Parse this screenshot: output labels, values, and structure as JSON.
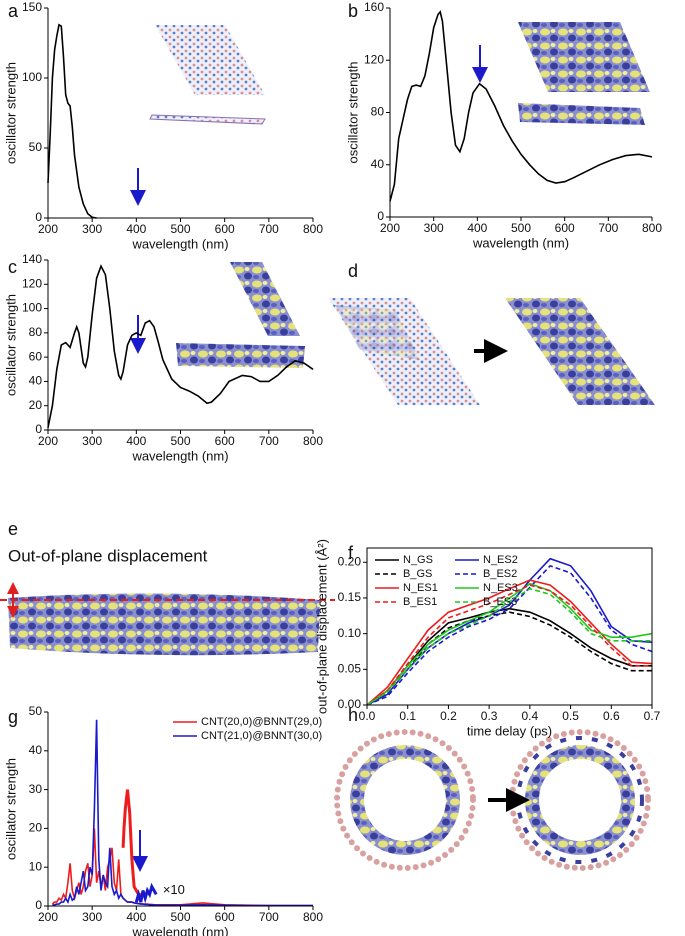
{
  "chart_data": [
    {
      "type": "line",
      "panel": "a",
      "xlabel": "wavelength (nm)",
      "ylabel": "oscillator strength",
      "x": [
        200,
        205,
        210,
        215,
        220,
        225,
        230,
        235,
        240,
        245,
        250,
        255,
        260,
        270,
        280,
        290,
        300,
        310
      ],
      "xlim": [
        200,
        800
      ],
      "xticks": [
        200,
        300,
        400,
        500,
        600,
        700,
        800
      ],
      "ylim": [
        0,
        150
      ],
      "yticks": [
        0,
        50,
        100,
        150
      ],
      "series": [
        {
          "color": "#000000",
          "values": [
            25,
            60,
            100,
            120,
            130,
            138,
            137,
            115,
            88,
            82,
            80,
            65,
            45,
            22,
            10,
            3,
            0.5,
            0
          ]
        }
      ]
    },
    {
      "type": "line",
      "panel": "b",
      "xlabel": "wavelength (nm)",
      "ylabel": "oscillator strength",
      "x": [
        200,
        210,
        220,
        230,
        240,
        250,
        260,
        270,
        280,
        290,
        300,
        310,
        315,
        320,
        330,
        340,
        350,
        360,
        370,
        380,
        390,
        405,
        420,
        440,
        460,
        480,
        500,
        520,
        540,
        560,
        580,
        600,
        620,
        650,
        680,
        710,
        740,
        770,
        800
      ],
      "xlim": [
        200,
        800
      ],
      "xticks": [
        200,
        300,
        400,
        500,
        600,
        700,
        800
      ],
      "ylim": [
        0,
        160
      ],
      "yticks": [
        0,
        40,
        80,
        120,
        160
      ],
      "series": [
        {
          "color": "#000000",
          "values": [
            12,
            25,
            60,
            75,
            90,
            100,
            101,
            100,
            108,
            125,
            145,
            155,
            157,
            150,
            115,
            80,
            55,
            50,
            60,
            80,
            95,
            102,
            98,
            85,
            70,
            58,
            48,
            40,
            33,
            28,
            26,
            27,
            30,
            35,
            40,
            44,
            47,
            48,
            46
          ]
        }
      ]
    },
    {
      "type": "line",
      "panel": "c",
      "xlabel": "wavelength (nm)",
      "ylabel": "oscillator strength",
      "x": [
        200,
        210,
        220,
        230,
        240,
        250,
        260,
        265,
        270,
        280,
        285,
        290,
        300,
        310,
        320,
        330,
        340,
        350,
        360,
        365,
        370,
        380,
        390,
        400,
        410,
        420,
        430,
        440,
        450,
        460,
        480,
        500,
        520,
        540,
        560,
        570,
        590,
        610,
        640,
        660,
        680,
        700,
        720,
        740,
        760,
        780,
        800
      ],
      "xlim": [
        200,
        800
      ],
      "xticks": [
        200,
        300,
        400,
        500,
        600,
        700,
        800
      ],
      "ylim": [
        0,
        140
      ],
      "yticks": [
        0,
        20,
        40,
        60,
        80,
        100,
        120,
        140
      ],
      "series": [
        {
          "color": "#000000",
          "values": [
            2,
            20,
            50,
            70,
            72,
            68,
            80,
            85,
            80,
            55,
            52,
            60,
            95,
            125,
            135,
            128,
            100,
            65,
            45,
            42,
            48,
            70,
            78,
            80,
            78,
            88,
            90,
            85,
            72,
            58,
            42,
            35,
            32,
            28,
            22,
            23,
            30,
            40,
            45,
            44,
            40,
            40,
            45,
            52,
            57,
            55,
            50
          ]
        }
      ]
    },
    {
      "type": "line",
      "panel": "f",
      "xlabel": "time delay (ps)",
      "ylabel": "out-of-plane displacement (Å²)",
      "x": [
        0,
        0.05,
        0.1,
        0.15,
        0.2,
        0.25,
        0.3,
        0.35,
        0.4,
        0.45,
        0.5,
        0.55,
        0.6,
        0.65,
        0.7
      ],
      "xlim": [
        0,
        0.7
      ],
      "xticks": [
        {
          "value": 0,
          "label": "0.0"
        },
        {
          "value": 0.1,
          "label": "0.1"
        },
        {
          "value": 0.2,
          "label": "0.2"
        },
        {
          "value": 0.3,
          "label": "0.3"
        },
        {
          "value": 0.4,
          "label": "0.4"
        },
        {
          "value": 0.5,
          "label": "0.5"
        },
        {
          "value": 0.6,
          "label": "0.6"
        },
        {
          "value": 0.7,
          "label": "0.7"
        }
      ],
      "ylim": [
        0,
        0.22
      ],
      "yticks": [
        {
          "value": 0,
          "label": "0.00"
        },
        {
          "value": 0.05,
          "label": "0.05"
        },
        {
          "value": 0.1,
          "label": "0.10"
        },
        {
          "value": 0.15,
          "label": "0.15"
        },
        {
          "value": 0.2,
          "label": "0.20"
        }
      ],
      "legend": "upper left",
      "frame": true,
      "series": [
        {
          "name": "N_GS",
          "color": "#000000",
          "dash": false,
          "values": [
            0,
            0.02,
            0.055,
            0.09,
            0.115,
            0.122,
            0.13,
            0.135,
            0.13,
            0.118,
            0.1,
            0.08,
            0.065,
            0.055,
            0.055
          ]
        },
        {
          "name": "N_ES2",
          "color": "#1a1acc",
          "dash": false,
          "values": [
            0,
            0.015,
            0.05,
            0.08,
            0.1,
            0.115,
            0.125,
            0.14,
            0.175,
            0.205,
            0.195,
            0.16,
            0.11,
            0.09,
            0.088
          ]
        },
        {
          "name": "B_GS",
          "color": "#000000",
          "dash": true,
          "values": [
            0,
            0.018,
            0.05,
            0.085,
            0.108,
            0.118,
            0.125,
            0.13,
            0.124,
            0.112,
            0.095,
            0.075,
            0.058,
            0.048,
            0.048
          ]
        },
        {
          "name": "B_ES2",
          "color": "#1a1acc",
          "dash": true,
          "values": [
            0,
            0.012,
            0.045,
            0.075,
            0.095,
            0.11,
            0.12,
            0.135,
            0.165,
            0.195,
            0.185,
            0.15,
            0.105,
            0.085,
            0.075
          ]
        },
        {
          "name": "N_ES1",
          "color": "#ee1c1c",
          "dash": false,
          "values": [
            0,
            0.025,
            0.065,
            0.105,
            0.13,
            0.14,
            0.15,
            0.163,
            0.175,
            0.168,
            0.145,
            0.115,
            0.085,
            0.06,
            0.058
          ]
        },
        {
          "name": "N_ES3",
          "color": "#1ec81e",
          "dash": false,
          "values": [
            0,
            0.02,
            0.055,
            0.085,
            0.105,
            0.118,
            0.13,
            0.15,
            0.17,
            0.16,
            0.135,
            0.105,
            0.095,
            0.095,
            0.1
          ]
        },
        {
          "name": "B_ES1",
          "color": "#ee1c1c",
          "dash": true,
          "values": [
            0,
            0.02,
            0.058,
            0.095,
            0.122,
            0.132,
            0.142,
            0.155,
            0.168,
            0.16,
            0.14,
            0.11,
            0.08,
            0.055,
            0.055
          ]
        },
        {
          "name": "B_ES3",
          "color": "#1ec81e",
          "dash": true,
          "values": [
            0,
            0.018,
            0.05,
            0.08,
            0.1,
            0.112,
            0.125,
            0.145,
            0.163,
            0.155,
            0.13,
            0.1,
            0.09,
            0.09,
            0.09
          ]
        }
      ]
    },
    {
      "type": "line",
      "panel": "g",
      "xlabel": "wavelength (nm)",
      "ylabel": "oscillator strength",
      "annotation": "×10",
      "x": [
        210,
        215,
        220,
        225,
        230,
        235,
        240,
        245,
        250,
        255,
        260,
        265,
        270,
        275,
        280,
        285,
        290,
        295,
        300,
        305,
        310,
        315,
        320,
        325,
        330,
        335,
        340,
        345,
        350,
        355,
        360,
        365,
        370,
        375,
        380,
        385,
        390,
        395,
        400,
        405,
        410,
        415,
        420,
        425,
        430,
        435,
        440,
        445,
        450,
        500,
        550,
        600,
        650,
        700,
        750,
        800
      ],
      "xlim": [
        200,
        800
      ],
      "xticks": [
        200,
        300,
        400,
        500,
        600,
        700,
        800
      ],
      "ylim": [
        0,
        50
      ],
      "yticks": [
        0,
        10,
        20,
        30,
        40,
        50
      ],
      "legend": "upper right",
      "series": [
        {
          "name": "CNT(20,0)@BNNT(29,0)",
          "color": "#ee1c1c",
          "values": [
            0.5,
            1,
            1,
            2,
            1.5,
            3,
            2,
            6,
            11,
            4,
            2,
            4,
            6,
            3,
            5,
            9,
            11,
            5,
            8,
            20,
            6,
            9,
            5,
            8,
            4,
            10,
            12,
            15,
            6,
            4,
            12,
            3,
            2,
            1.5,
            1,
            1,
            1,
            0.8,
            0.8,
            0.6,
            0.6,
            0.5,
            0.5,
            0.5,
            0.4,
            0.4,
            0.3,
            0.3,
            0.3,
            0.3,
            0.8,
            0.3,
            0.2,
            0.1,
            0.1,
            0.1
          ]
        },
        {
          "name": "CNT(21,0)@BNNT(30,0)",
          "color": "#1a1acc",
          "values": [
            0.2,
            0.3,
            0.5,
            0.5,
            1,
            1,
            2,
            1,
            3,
            1.5,
            2,
            5,
            3,
            6,
            9,
            4,
            5,
            10,
            8,
            25,
            48,
            12,
            4,
            8,
            6,
            5,
            15,
            5,
            3,
            4,
            2,
            3,
            2,
            1.5,
            1,
            1,
            1,
            0.8,
            0.7,
            0.6,
            0.5,
            0.5,
            0.4,
            0.4,
            0.3,
            0.3,
            0.3,
            0.2,
            0.2,
            0.2,
            0.3,
            0.2,
            0.1,
            0.1,
            0.1,
            0.1
          ]
        },
        {
          "color": "#ee1c1c",
          "width": 3,
          "x": [
            370,
            372,
            375,
            380,
            385,
            390,
            395,
            400,
            405,
            410
          ],
          "values": [
            15,
            20,
            25,
            30,
            24,
            12,
            5,
            4,
            3,
            3
          ]
        },
        {
          "color": "#1a1acc",
          "width": 3,
          "x": [
            400,
            405,
            410,
            415,
            420,
            425,
            430,
            435,
            440,
            445
          ],
          "values": [
            1,
            3,
            1,
            4,
            2,
            4,
            3,
            5,
            4,
            3
          ]
        }
      ]
    }
  ],
  "images": [
    {
      "panel": "d"
    },
    {
      "panel": "e",
      "title": "Out-of-plane displacement"
    },
    {
      "panel": "h"
    }
  ]
}
